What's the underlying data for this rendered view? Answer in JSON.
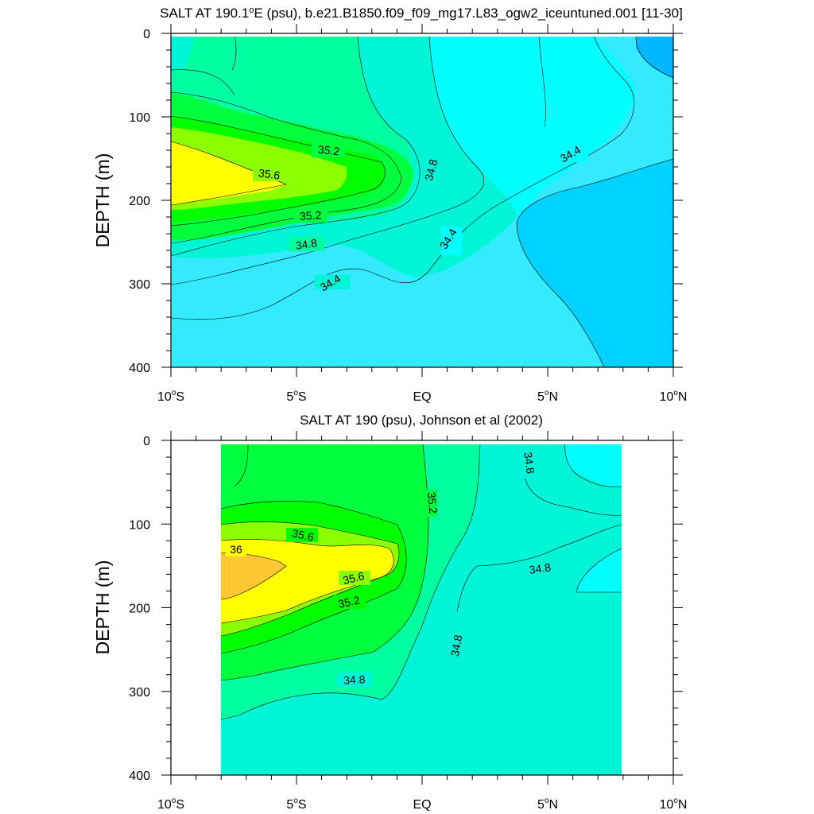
{
  "colors": {
    "c_34_0": "#00B6FF",
    "c_34_2": "#00D2FF",
    "c_34_4": "#33EAFF",
    "c_34_6": "#00FFFF",
    "c_34_8": "#00F5D6",
    "c_35_0": "#00FFA0",
    "c_35_2": "#00FF3C",
    "c_35_4": "#00FF00",
    "c_35_6": "#8CFF00",
    "c_35_8": "#FFFF00",
    "c_36_0": "#FFC832"
  },
  "chart_data": [
    {
      "type": "contour",
      "title": "SALT AT 190.1°E (psu), b.e21.B1850.f09_f09_mg17.L83_ogw2_iceuntuned.001 [11-30]",
      "title_main": "SALT AT 190.1",
      "title_deg": "o",
      "title_rest": "E (psu), b.e21.B1850.f09_f09_mg17.L83_ogw2_iceuntuned.001 [11-30]",
      "ylabel": "DEPTH (m)",
      "xlim": [
        -10,
        10
      ],
      "ylim": [
        400,
        0
      ],
      "y_ticks": [
        "0",
        "100",
        "200",
        "300",
        "400"
      ],
      "x_ticks": [
        {
          "label": "10",
          "deg": "o",
          "suffix": "S"
        },
        {
          "label": "5",
          "deg": "o",
          "suffix": "S"
        },
        {
          "label": "EQ",
          "deg": "",
          "suffix": ""
        },
        {
          "label": "5",
          "deg": "o",
          "suffix": "N"
        },
        {
          "label": "10",
          "deg": "o",
          "suffix": "N"
        }
      ],
      "contour_labels": [
        "35.2",
        "35.6",
        "35.2",
        "34.8",
        "34.4",
        "34.8",
        "34.4",
        "34.4"
      ],
      "levels": [
        34.0,
        34.2,
        34.4,
        34.6,
        34.8,
        35.0,
        35.2,
        35.4,
        35.6,
        35.8
      ],
      "data_extent": {
        "lat": [
          -10,
          10
        ],
        "depth": [
          5,
          400
        ]
      }
    },
    {
      "type": "contour",
      "title": "SALT AT 190 (psu), Johnson et al (2002)",
      "ylabel": "DEPTH (m)",
      "xlim": [
        -10,
        10
      ],
      "ylim": [
        400,
        0
      ],
      "y_ticks": [
        "0",
        "100",
        "200",
        "300",
        "400"
      ],
      "x_ticks": [
        {
          "label": "10",
          "deg": "o",
          "suffix": "S"
        },
        {
          "label": "5",
          "deg": "o",
          "suffix": "S"
        },
        {
          "label": "EQ",
          "deg": "",
          "suffix": ""
        },
        {
          "label": "5",
          "deg": "o",
          "suffix": "N"
        },
        {
          "label": "10",
          "deg": "o",
          "suffix": "N"
        }
      ],
      "contour_labels": [
        "34.8",
        "35.2",
        "35.6",
        "36",
        "34.8",
        "35.6",
        "35.2",
        "34.8",
        "34.8"
      ],
      "levels": [
        34.6,
        34.8,
        35.0,
        35.2,
        35.4,
        35.6,
        35.8,
        36.0
      ],
      "data_extent": {
        "lat": [
          -8,
          8
        ],
        "depth": [
          5,
          400
        ]
      }
    }
  ]
}
